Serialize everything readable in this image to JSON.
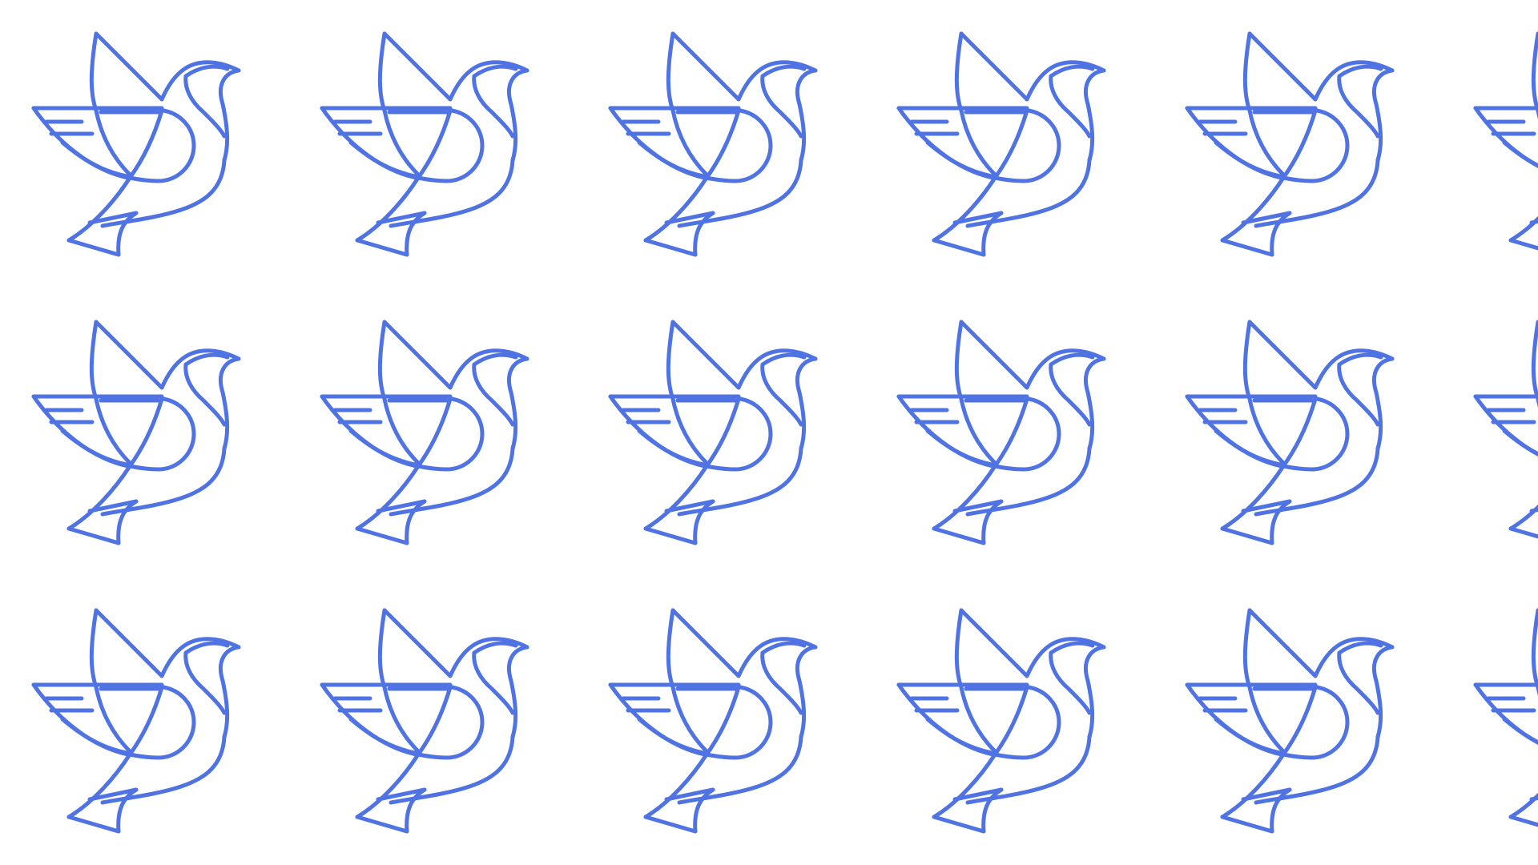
{
  "pattern": {
    "motif": "dove-icon",
    "stroke_color": "#4f73e3",
    "background_color": "#ffffff",
    "rows": 3,
    "columns_full": 5,
    "partial_edge_columns": true
  }
}
